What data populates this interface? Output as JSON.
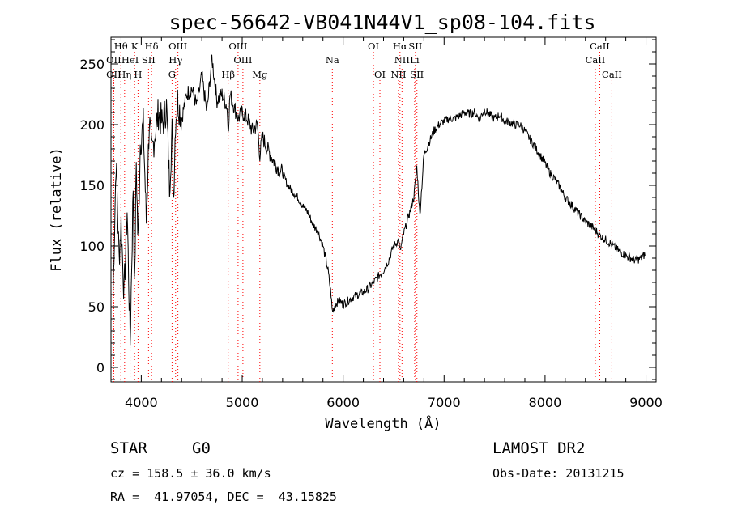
{
  "footer": {
    "object_class": "STAR",
    "subclass": "G0",
    "survey": "LAMOST DR2",
    "redshift_line": "cz = 158.5 ± 36.0 km/s",
    "obs_date_line": "Obs-Date: 20131215",
    "coords_line": "RA =  41.97054, DEC =  43.15825"
  },
  "chart_data": {
    "type": "line",
    "title": "spec-56642-VB041N44V1_sp08-104.fits",
    "xlabel": "Wavelength (Å)",
    "ylabel": "Flux (relative)",
    "xlim": [
      3700,
      9100
    ],
    "ylim": [
      -12,
      272
    ],
    "x_ticks": [
      4000,
      5000,
      6000,
      7000,
      8000,
      9000
    ],
    "y_ticks": [
      0,
      50,
      100,
      150,
      200,
      250
    ],
    "grid": false,
    "line_color": "#000000",
    "marker_color": "#ff0000",
    "spectral_lines": [
      {
        "label": "Hθ",
        "wavelength": 3798,
        "row": 0
      },
      {
        "label": "K",
        "wavelength": 3934,
        "row": 0
      },
      {
        "label": "Hδ",
        "wavelength": 4102,
        "row": 0
      },
      {
        "label": "OIII",
        "wavelength": 4363,
        "row": 0
      },
      {
        "label": "OIII",
        "wavelength": 4959,
        "row": 0
      },
      {
        "label": "OI",
        "wavelength": 6300,
        "row": 0
      },
      {
        "label": "Hα",
        "wavelength": 6563,
        "row": 0
      },
      {
        "label": "SII",
        "wavelength": 6716,
        "row": 0
      },
      {
        "label": "CaII",
        "wavelength": 8542,
        "row": 0
      },
      {
        "label": "OII",
        "wavelength": 3727,
        "row": 1
      },
      {
        "label": "HeI",
        "wavelength": 3889,
        "row": 1
      },
      {
        "label": "SII",
        "wavelength": 4072,
        "row": 1
      },
      {
        "label": "Hγ",
        "wavelength": 4340,
        "row": 1
      },
      {
        "label": "OIII",
        "wavelength": 5007,
        "row": 1
      },
      {
        "label": "Na",
        "wavelength": 5893,
        "row": 1
      },
      {
        "label": "NII",
        "wavelength": 6583,
        "row": 1
      },
      {
        "label": "Li",
        "wavelength": 6708,
        "row": 1
      },
      {
        "label": "CaII",
        "wavelength": 8498,
        "row": 1
      },
      {
        "label": "OII",
        "wavelength": 3727,
        "row": 2
      },
      {
        "label": "Hη",
        "wavelength": 3835,
        "row": 2
      },
      {
        "label": "H",
        "wavelength": 3968,
        "row": 2
      },
      {
        "label": "G",
        "wavelength": 4305,
        "row": 2
      },
      {
        "label": "Hβ",
        "wavelength": 4861,
        "row": 2
      },
      {
        "label": "Mg",
        "wavelength": 5175,
        "row": 2
      },
      {
        "label": "OI",
        "wavelength": 6364,
        "row": 2
      },
      {
        "label": "NII",
        "wavelength": 6548,
        "row": 2
      },
      {
        "label": "SII",
        "wavelength": 6731,
        "row": 2
      },
      {
        "label": "CaII",
        "wavelength": 8662,
        "row": 2
      }
    ],
    "series": [
      {
        "x": [
          3720,
          3750,
          3780,
          3800,
          3830,
          3860,
          3890,
          3920,
          3934,
          3950,
          3968,
          3990,
          4020,
          4050,
          4080,
          4102,
          4130,
          4170,
          4210,
          4250,
          4280,
          4305,
          4320,
          4340,
          4360,
          4400,
          4450,
          4500,
          4550,
          4600,
          4650,
          4700,
          4750,
          4800,
          4850,
          4861,
          4880,
          4920,
          4960,
          5000,
          5050,
          5100,
          5150,
          5175,
          5200,
          5250,
          5300,
          5350,
          5400,
          5450,
          5500,
          5550,
          5600,
          5650,
          5700,
          5750,
          5800,
          5850,
          5880,
          5893,
          5920,
          5960,
          6000,
          6050,
          6100,
          6150,
          6200,
          6250,
          6300,
          6350,
          6400,
          6450,
          6500,
          6550,
          6563,
          6600,
          6650,
          6700,
          6730,
          6760,
          6800,
          6850,
          6900,
          6950,
          7000,
          7050,
          7100,
          7150,
          7200,
          7250,
          7300,
          7350,
          7400,
          7450,
          7500,
          7550,
          7600,
          7650,
          7700,
          7750,
          7800,
          7850,
          7900,
          7950,
          8000,
          8050,
          8100,
          8150,
          8200,
          8250,
          8300,
          8350,
          8400,
          8450,
          8500,
          8550,
          8600,
          8650,
          8700,
          8750,
          8800,
          8850,
          8900,
          8950,
          8990
        ],
        "y": [
          60,
          170,
          90,
          120,
          60,
          130,
          20,
          150,
          60,
          170,
          100,
          185,
          200,
          120,
          205,
          175,
          190,
          210,
          200,
          215,
          150,
          195,
          140,
          205,
          220,
          205,
          225,
          230,
          215,
          240,
          210,
          255,
          220,
          225,
          215,
          195,
          225,
          215,
          205,
          210,
          205,
          195,
          200,
          175,
          190,
          180,
          172,
          165,
          160,
          150,
          145,
          140,
          133,
          128,
          118,
          112,
          100,
          80,
          60,
          45,
          52,
          55,
          52,
          55,
          58,
          60,
          62,
          65,
          70,
          75,
          80,
          88,
          100,
          105,
          95,
          110,
          125,
          140,
          165,
          125,
          175,
          185,
          195,
          200,
          203,
          205,
          205,
          207,
          210,
          209,
          210,
          205,
          212,
          208,
          205,
          208,
          203,
          202,
          200,
          200,
          195,
          188,
          182,
          175,
          168,
          160,
          155,
          148,
          140,
          135,
          130,
          125,
          120,
          117,
          113,
          108,
          105,
          102,
          98,
          95,
          92,
          90,
          88,
          90,
          93
        ]
      }
    ]
  }
}
